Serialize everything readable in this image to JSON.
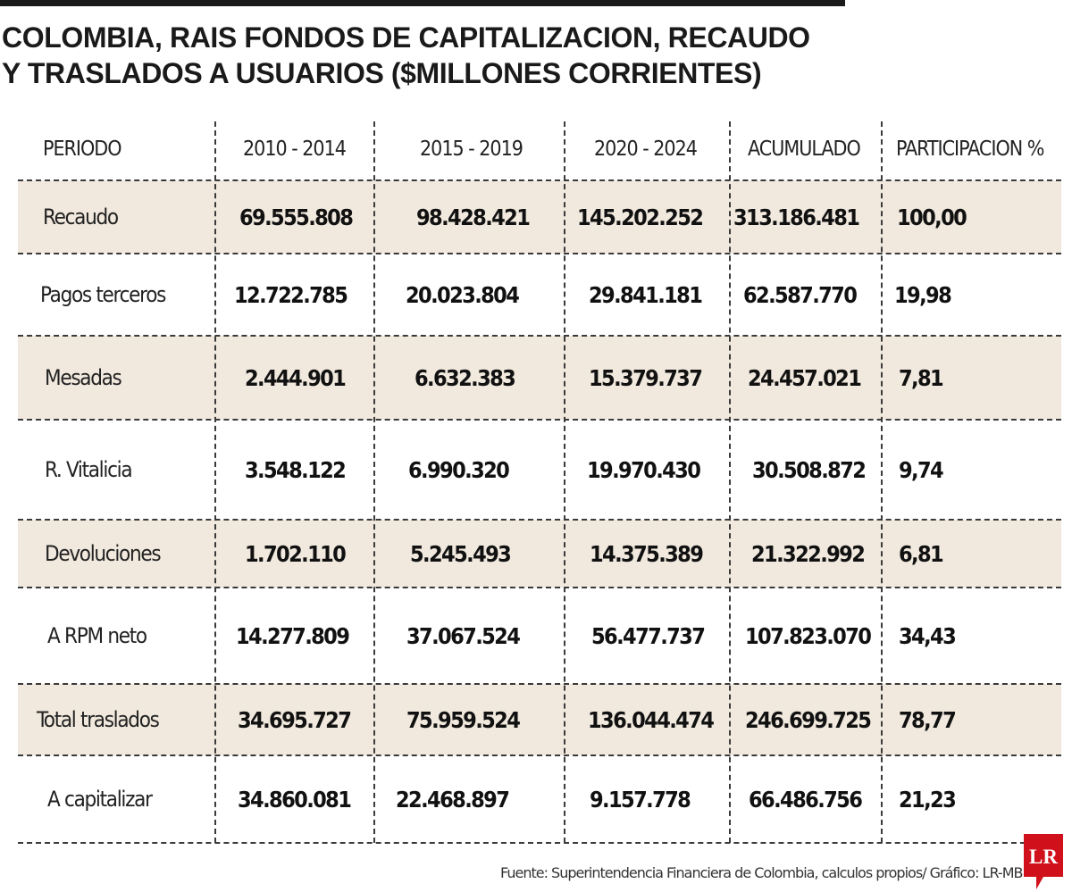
{
  "title": {
    "line1": "COLOMBIA, RAIS FONDOS DE CAPITALIZACION, RECAUDO",
    "line2": "Y TRASLADOS A USUARIOS ($MILLONES CORRIENTES)"
  },
  "chart_data": {
    "type": "table",
    "title": "COLOMBIA, RAIS FONDOS DE CAPITALIZACION, RECAUDO Y TRASLADOS A USUARIOS ($MILLONES CORRIENTES)",
    "columns": [
      "PERIODO",
      "2010 - 2014",
      "2015 - 2019",
      "2020 - 2024",
      "ACUMULADO",
      "PARTICIPACION %"
    ],
    "rows": [
      {
        "label": "Recaudo",
        "values": [
          "69.555.808",
          "98.428.421",
          "145.202.252",
          "313.186.481",
          "100,00"
        ],
        "shaded": true
      },
      {
        "label": "Pagos terceros",
        "values": [
          "12.722.785",
          "20.023.804",
          "29.841.181",
          "62.587.770",
          "19,98"
        ],
        "shaded": false
      },
      {
        "label": "Mesadas",
        "values": [
          "2.444.901",
          "6.632.383",
          "15.379.737",
          "24.457.021",
          "7,81"
        ],
        "shaded": true
      },
      {
        "label": "R. Vitalicia",
        "values": [
          "3.548.122",
          "6.990.320",
          "19.970.430",
          "30.508.872",
          "9,74"
        ],
        "shaded": false
      },
      {
        "label": "Devoluciones",
        "values": [
          "1.702.110",
          "5.245.493",
          "14.375.389",
          "21.322.992",
          "6,81"
        ],
        "shaded": true
      },
      {
        "label": "A RPM neto",
        "values": [
          "14.277.809",
          "37.067.524",
          "56.477.737",
          "107.823.070",
          "34,43"
        ],
        "shaded": false
      },
      {
        "label": "Total traslados",
        "values": [
          "34.695.727",
          "75.959.524",
          "136.044.474",
          "246.699.725",
          "78,77"
        ],
        "shaded": true
      },
      {
        "label": "A capitalizar",
        "values": [
          "34.860.081",
          "22.468.897",
          "9.157.778",
          "66.486.756",
          "21,23"
        ],
        "shaded": false
      }
    ],
    "grid": true
  },
  "colors": {
    "shaded_row": "#f1e9de",
    "text": "#1a1a1a",
    "logo_red": "#d0101a"
  },
  "source": "Fuente: Superintendencia Financiera de Colombia, calculos propios/ Gráfico: LR-MB",
  "logo": {
    "text": "LR",
    "icon": "lr-logo-icon"
  }
}
